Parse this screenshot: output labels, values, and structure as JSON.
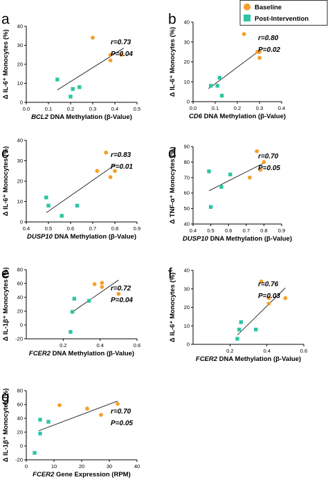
{
  "colors": {
    "baseline": "#f5a02a",
    "post": "#2ec4a4"
  },
  "legend": {
    "items": [
      "Baseline",
      "Post-Intervention"
    ]
  },
  "chart_data": [
    {
      "panel": "a",
      "type": "scatter",
      "xlabel_gene": "BCL2",
      "xlabel_rest": " DNA Methylation (β-Value)",
      "ylabel": "Δ IL-6⁺ Monocytes (%)",
      "xlim": [
        0.0,
        0.5
      ],
      "ylim": [
        0,
        40
      ],
      "xticks": [
        "0.0",
        "0.1",
        "0.2",
        "0.3",
        "0.4",
        "0.5"
      ],
      "yticks": [
        "0",
        "10",
        "20",
        "30",
        "40"
      ],
      "r": "r=0.73",
      "p": "P=0.04",
      "series": [
        {
          "name": "Baseline",
          "x": [
            0.3,
            0.38,
            0.38,
            0.43
          ],
          "y": [
            34,
            25,
            22,
            25
          ]
        },
        {
          "name": "Post-Intervention",
          "x": [
            0.14,
            0.2,
            0.21,
            0.24
          ],
          "y": [
            12,
            3,
            7,
            8
          ]
        }
      ],
      "fit": [
        [
          0.14,
          6.5
        ],
        [
          0.44,
          28.5
        ]
      ]
    },
    {
      "panel": "b",
      "type": "scatter",
      "xlabel_gene": "CD6",
      "xlabel_rest": " DNA Methylation (β-Value)",
      "ylabel": "Δ IL-6⁺ Monocytes (%)",
      "xlim": [
        0.0,
        0.4
      ],
      "ylim": [
        0,
        40
      ],
      "xticks": [
        "0.0",
        "0.1",
        "0.2",
        "0.3",
        "0.4"
      ],
      "yticks": [
        "0",
        "10",
        "20",
        "30",
        "40"
      ],
      "r": "r=0.80",
      "p": "P=0.02",
      "series": [
        {
          "name": "Baseline",
          "x": [
            0.23,
            0.29,
            0.3,
            0.3
          ],
          "y": [
            34,
            25,
            25,
            22
          ]
        },
        {
          "name": "Post-Intervention",
          "x": [
            0.08,
            0.11,
            0.12,
            0.13
          ],
          "y": [
            8,
            8,
            12,
            3
          ]
        }
      ],
      "fit": [
        [
          0.07,
          6.5
        ],
        [
          0.31,
          26.5
        ]
      ]
    },
    {
      "panel": "c",
      "type": "scatter",
      "xlabel_gene": "DUSP10",
      "xlabel_rest": " DNA Methylation (β-Value)",
      "ylabel": "Δ IL-6⁺ Monocytes (%)",
      "xlim": [
        0.4,
        0.9
      ],
      "ylim": [
        0,
        40
      ],
      "xticks": [
        "0.4",
        "0.5",
        "0.6",
        "0.7",
        "0.8",
        "0.9"
      ],
      "yticks": [
        "0",
        "10",
        "20",
        "30",
        "40"
      ],
      "r": "r=0.83",
      "p": "P=0.01",
      "series": [
        {
          "name": "Baseline",
          "x": [
            0.72,
            0.76,
            0.78,
            0.8
          ],
          "y": [
            25,
            34,
            22,
            25
          ]
        },
        {
          "name": "Post-Intervention",
          "x": [
            0.49,
            0.5,
            0.56,
            0.63
          ],
          "y": [
            12,
            8,
            3,
            8
          ]
        }
      ],
      "fit": [
        [
          0.49,
          4.5
        ],
        [
          0.8,
          28
        ]
      ]
    },
    {
      "panel": "d",
      "type": "scatter",
      "xlabel_gene": "DUSP10",
      "xlabel_rest": " DNA Methylation (β-Value)",
      "ylabel": "Δ TNF-α⁺ Monocytes (%)",
      "xlim": [
        0.4,
        0.9
      ],
      "ylim": [
        40,
        90
      ],
      "xticks": [
        "0.4",
        "0.5",
        "0.6",
        "0.7",
        "0.8",
        "0.9"
      ],
      "yticks": [
        "40",
        "50",
        "60",
        "70",
        "80",
        "90"
      ],
      "r": "r=0.70",
      "p": "P=0.05",
      "series": [
        {
          "name": "Baseline",
          "x": [
            0.72,
            0.76,
            0.78,
            0.8
          ],
          "y": [
            70,
            87,
            75,
            80
          ]
        },
        {
          "name": "Post-Intervention",
          "x": [
            0.49,
            0.5,
            0.56,
            0.61
          ],
          "y": [
            74,
            51,
            64,
            72
          ]
        }
      ],
      "fit": [
        [
          0.49,
          61.5
        ],
        [
          0.81,
          80
        ]
      ]
    },
    {
      "panel": "e",
      "type": "scatter",
      "xlabel_gene": "FCER2",
      "xlabel_rest": " DNA Methylation (β-Value)",
      "ylabel": "Δ IL-1β⁺ Monocytes (%)",
      "xlim": [
        0.0,
        0.6
      ],
      "ylim": [
        -20,
        80
      ],
      "xticks": [
        "0.2",
        "0.4",
        "0.6"
      ],
      "yticks": [
        "-20",
        "0",
        "20",
        "40",
        "60",
        "80"
      ],
      "r": "r=0.72",
      "p": "P=0.04",
      "series": [
        {
          "name": "Baseline",
          "x": [
            0.37,
            0.41,
            0.41,
            0.5
          ],
          "y": [
            59,
            61,
            55,
            45
          ]
        },
        {
          "name": "Post-Intervention",
          "x": [
            0.24,
            0.25,
            0.26,
            0.34
          ],
          "y": [
            -10,
            19,
            38,
            35
          ]
        }
      ],
      "fit": [
        [
          0.24,
          17
        ],
        [
          0.5,
          65
        ]
      ]
    },
    {
      "panel": "f",
      "type": "scatter",
      "xlabel_gene": "FCER2",
      "xlabel_rest": " DNA Methylation (β-Value)",
      "ylabel": "Δ IL-6⁺ Monocytes (%)",
      "xlim": [
        0.0,
        0.6
      ],
      "ylim": [
        0,
        40
      ],
      "xticks": [
        "0.2",
        "0.4",
        "0.6"
      ],
      "yticks": [
        "0",
        "10",
        "20",
        "30",
        "40"
      ],
      "r": "r=0.76",
      "p": "P=0.03",
      "series": [
        {
          "name": "Baseline",
          "x": [
            0.37,
            0.41,
            0.41,
            0.5
          ],
          "y": [
            34,
            25,
            22,
            25
          ]
        },
        {
          "name": "Post-Intervention",
          "x": [
            0.24,
            0.25,
            0.26,
            0.34
          ],
          "y": [
            3,
            8,
            12,
            8
          ]
        }
      ],
      "fit": [
        [
          0.24,
          5
        ],
        [
          0.5,
          30.5
        ]
      ]
    },
    {
      "panel": "g",
      "type": "scatter",
      "xlabel_gene": "FCER2",
      "xlabel_rest": " Gene Expression (RPM)",
      "ylabel": "Δ IL-1β⁺ Monocytes (%)",
      "xlim": [
        0,
        40
      ],
      "ylim": [
        -20,
        80
      ],
      "xticks": [
        "0",
        "10",
        "20",
        "30",
        "40"
      ],
      "yticks": [
        "-20",
        "0",
        "20",
        "40",
        "60",
        "80"
      ],
      "r": "r=0.70",
      "p": "P=0.05",
      "series": [
        {
          "name": "Baseline",
          "x": [
            12,
            22,
            27,
            33
          ],
          "y": [
            59,
            54,
            45,
            61
          ]
        },
        {
          "name": "Post-Intervention",
          "x": [
            3,
            5,
            5,
            8
          ],
          "y": [
            -10,
            18,
            38,
            35
          ]
        }
      ],
      "fit": [
        [
          4.5,
          22
        ],
        [
          33,
          65
        ]
      ]
    }
  ]
}
